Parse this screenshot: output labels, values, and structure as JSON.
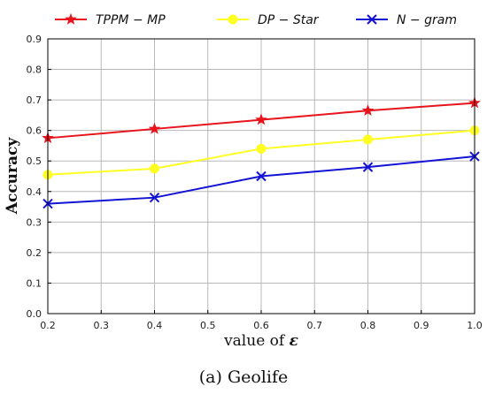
{
  "chart_data": {
    "type": "line",
    "x": [
      0.2,
      0.4,
      0.6,
      0.8,
      1.0
    ],
    "series": [
      {
        "name": "TPPM − MP",
        "values": [
          0.575,
          0.605,
          0.635,
          0.665,
          0.69
        ],
        "color": "#e8131b",
        "marker": "star"
      },
      {
        "name": "DP − Star",
        "values": [
          0.455,
          0.475,
          0.54,
          0.57,
          0.6
        ],
        "color": "#ffff22",
        "marker": "circle"
      },
      {
        "name": "N − gram",
        "values": [
          0.36,
          0.38,
          0.45,
          0.48,
          0.515
        ],
        "color": "#1313d6",
        "marker": "x"
      }
    ],
    "xlabel_prefix": "value of ",
    "xlabel_symbol": "ε",
    "ylabel": "Accuracy",
    "xlim": [
      0.2,
      1.0
    ],
    "ylim": [
      0.0,
      0.9
    ],
    "xticks": [
      "0.2",
      "0.3",
      "0.4",
      "0.5",
      "0.6",
      "0.7",
      "0.8",
      "0.9",
      "1.0"
    ],
    "yticks": [
      "0.0",
      "0.1",
      "0.2",
      "0.3",
      "0.4",
      "0.5",
      "0.6",
      "0.7",
      "0.8",
      "0.9"
    ],
    "grid": true,
    "legend_position": "top"
  },
  "caption": {
    "label": "(a)",
    "text": " Geolife"
  }
}
